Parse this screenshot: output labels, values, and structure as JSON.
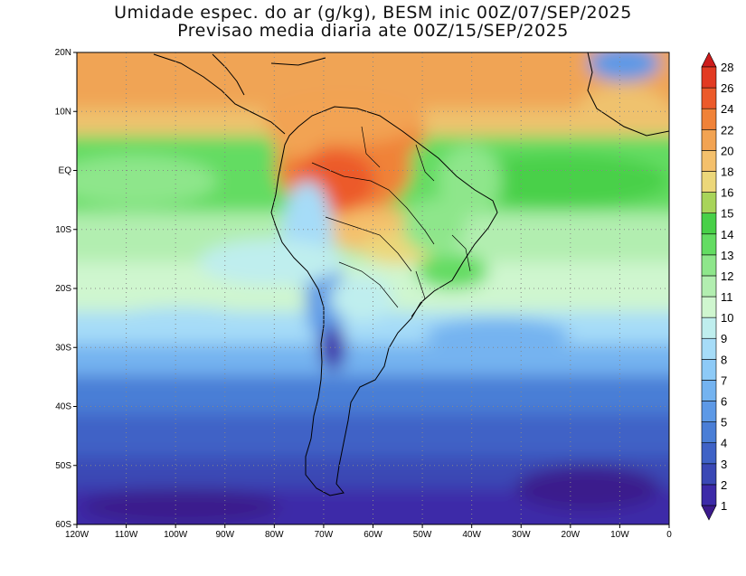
{
  "title": {
    "line1": "Umidade espec. do ar (g/kg), BESM inic 00Z/07/SEP/2025",
    "line2": "Previsao media diaria ate 00Z/15/SEP/2025"
  },
  "axes": {
    "lat_labels": [
      "20N",
      "10N",
      "EQ",
      "10S",
      "20S",
      "30S",
      "40S",
      "50S",
      "60S"
    ],
    "lon_labels": [
      "120W",
      "110W",
      "100W",
      "90W",
      "80W",
      "70W",
      "60W",
      "50W",
      "40W",
      "30W",
      "20W",
      "10W",
      "0"
    ],
    "lat_range": [
      -60,
      20
    ],
    "lon_range": [
      -120,
      0
    ],
    "grid": true
  },
  "colorbar": {
    "levels": [
      "1",
      "2",
      "3",
      "4",
      "5",
      "6",
      "7",
      "8",
      "9",
      "10",
      "11",
      "12",
      "13",
      "14",
      "15",
      "16",
      "18",
      "20",
      "22",
      "24",
      "26",
      "28"
    ],
    "colors": [
      "#3b1a8c",
      "#3c2aa8",
      "#3a48b5",
      "#3f62c6",
      "#4a7ed6",
      "#5d99e6",
      "#74b3f0",
      "#8dcaf7",
      "#a6dcf8",
      "#bfeeee",
      "#cff6cf",
      "#b2eeb0",
      "#8ee68b",
      "#63dc62",
      "#48d048",
      "#a8d45a",
      "#ecd77a",
      "#f4c06c",
      "#f2a352",
      "#f08238",
      "#ec5a2a",
      "#e23a22",
      "#cc1b1b"
    ]
  },
  "chart_data": {
    "type": "heatmap",
    "variable": "Umidade espec. do ar (g/kg)",
    "xlim": [
      -120,
      0
    ],
    "ylim": [
      -60,
      20
    ],
    "levels": [
      1,
      2,
      3,
      4,
      5,
      6,
      7,
      8,
      9,
      10,
      11,
      12,
      13,
      14,
      15,
      16,
      18,
      20,
      22,
      24,
      26,
      28
    ]
  }
}
